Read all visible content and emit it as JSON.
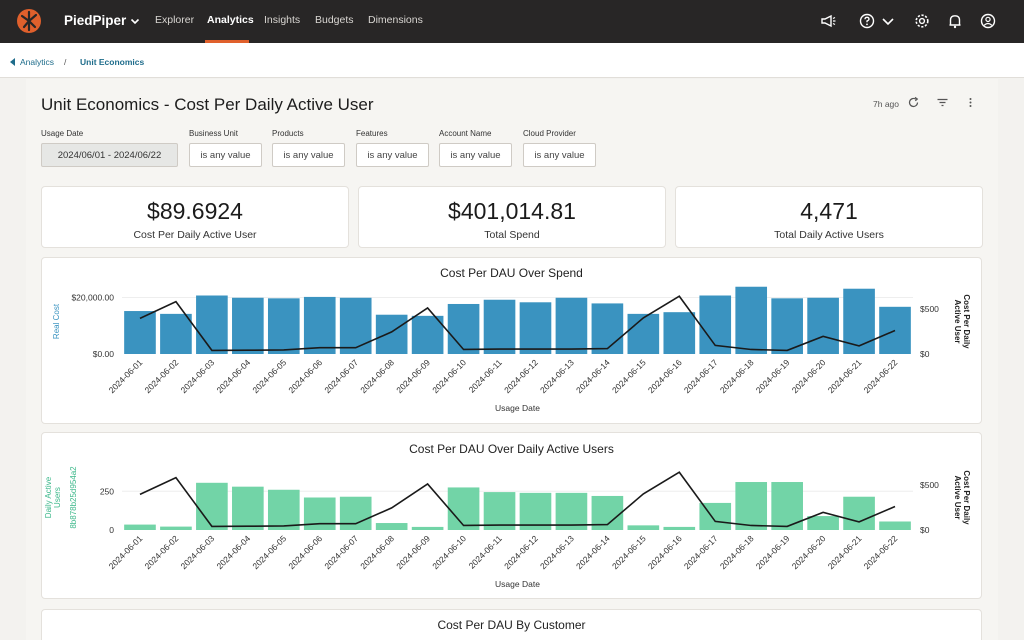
{
  "app": {
    "brand": "PiedPiper"
  },
  "nav": {
    "items": [
      "Explorer",
      "Analytics",
      "Insights",
      "Budgets",
      "Dimensions"
    ],
    "active": "Analytics"
  },
  "breadcrumb": {
    "parent": "Analytics",
    "separator": "/",
    "current": "Unit Economics"
  },
  "header": {
    "title": "Unit Economics - Cost Per Daily Active User",
    "updated": "7h ago"
  },
  "filters": [
    {
      "label": "Usage Date",
      "value": "2024/06/01 - 2024/06/22"
    },
    {
      "label": "Business Unit",
      "value": "is any value"
    },
    {
      "label": "Products",
      "value": "is any value"
    },
    {
      "label": "Features",
      "value": "is any value"
    },
    {
      "label": "Account Name",
      "value": "is any value"
    },
    {
      "label": "Cloud Provider",
      "value": "is any value"
    }
  ],
  "kpis": [
    {
      "value": "$89.6924",
      "label": "Cost Per Daily Active User"
    },
    {
      "value": "$401,014.81",
      "label": "Total Spend"
    },
    {
      "value": "4,471",
      "label": "Total Daily Active Users"
    }
  ],
  "cards": {
    "third_title": "Cost Per DAU By Customer"
  },
  "colors": {
    "topbar": "#282626",
    "accent": "#e0602c",
    "link": "#1e6c8b",
    "bar_blue": "#3a93c0",
    "bar_green": "#72d4a7",
    "line": "#1a1a1a"
  },
  "icons": [
    "piedpiper-logo-icon",
    "megaphone-icon",
    "help-icon",
    "chevron-down-icon",
    "gear-icon",
    "bell-icon",
    "user-icon",
    "refresh-icon",
    "filter-icon",
    "more-vertical-icon",
    "chevron-left-icon"
  ],
  "chart_data": [
    {
      "type": "bar",
      "title": "Cost Per DAU Over Spend",
      "xlabel": "Usage Date",
      "ylabel": "Real Cost",
      "y2label": "Cost Per Daily Active User",
      "categories": [
        "2024-06-01",
        "2024-06-02",
        "2024-06-03",
        "2024-06-04",
        "2024-06-05",
        "2024-06-06",
        "2024-06-07",
        "2024-06-08",
        "2024-06-09",
        "2024-06-10",
        "2024-06-11",
        "2024-06-12",
        "2024-06-13",
        "2024-06-14",
        "2024-06-15",
        "2024-06-16",
        "2024-06-17",
        "2024-06-18",
        "2024-06-19",
        "2024-06-20",
        "2024-06-21",
        "2024-06-22"
      ],
      "yticks": [
        "$0.00",
        "$20,000.00"
      ],
      "y2ticks": [
        "$0",
        "$500"
      ],
      "ylim": [
        0,
        23000
      ],
      "y2lim": [
        0,
        720
      ],
      "series": [
        {
          "type": "bar",
          "values": [
            15200,
            14200,
            20700,
            19900,
            19700,
            20200,
            19900,
            13900,
            13500,
            17700,
            19200,
            18300,
            19900,
            17900,
            14200,
            14800,
            20700,
            23800,
            19700,
            19900,
            23100,
            16700
          ]
        },
        {
          "type": "line",
          "axis": "y2",
          "values": [
            395,
            580,
            40,
            42,
            45,
            70,
            70,
            245,
            510,
            50,
            55,
            55,
            55,
            60,
            400,
            640,
            95,
            50,
            40,
            195,
            90,
            260
          ]
        }
      ]
    },
    {
      "type": "bar",
      "title": "Cost Per DAU Over Daily Active Users",
      "xlabel": "Usage Date",
      "ylabel": "Daily Active Users",
      "ylabel_sub": "8b878b25d954a2",
      "y2label": "Cost Per Daily Active User",
      "categories": [
        "2024-06-01",
        "2024-06-02",
        "2024-06-03",
        "2024-06-04",
        "2024-06-05",
        "2024-06-06",
        "2024-06-07",
        "2024-06-08",
        "2024-06-09",
        "2024-06-10",
        "2024-06-11",
        "2024-06-12",
        "2024-06-13",
        "2024-06-14",
        "2024-06-15",
        "2024-06-16",
        "2024-06-17",
        "2024-06-18",
        "2024-06-19",
        "2024-06-20",
        "2024-06-21",
        "2024-06-22"
      ],
      "yticks": [
        "0",
        "250"
      ],
      "y2ticks": [
        "$0",
        "$500"
      ],
      "ylim": [
        0,
        420
      ],
      "y2lim": [
        0,
        720
      ],
      "series": [
        {
          "type": "bar",
          "values": [
            35,
            22,
            305,
            280,
            260,
            210,
            215,
            45,
            20,
            275,
            245,
            240,
            240,
            220,
            30,
            20,
            175,
            310,
            310,
            90,
            215,
            55
          ]
        },
        {
          "type": "line",
          "axis": "y2",
          "values": [
            395,
            580,
            40,
            42,
            45,
            70,
            70,
            245,
            510,
            50,
            55,
            55,
            55,
            60,
            400,
            640,
            95,
            50,
            40,
            195,
            90,
            260
          ]
        }
      ]
    }
  ]
}
